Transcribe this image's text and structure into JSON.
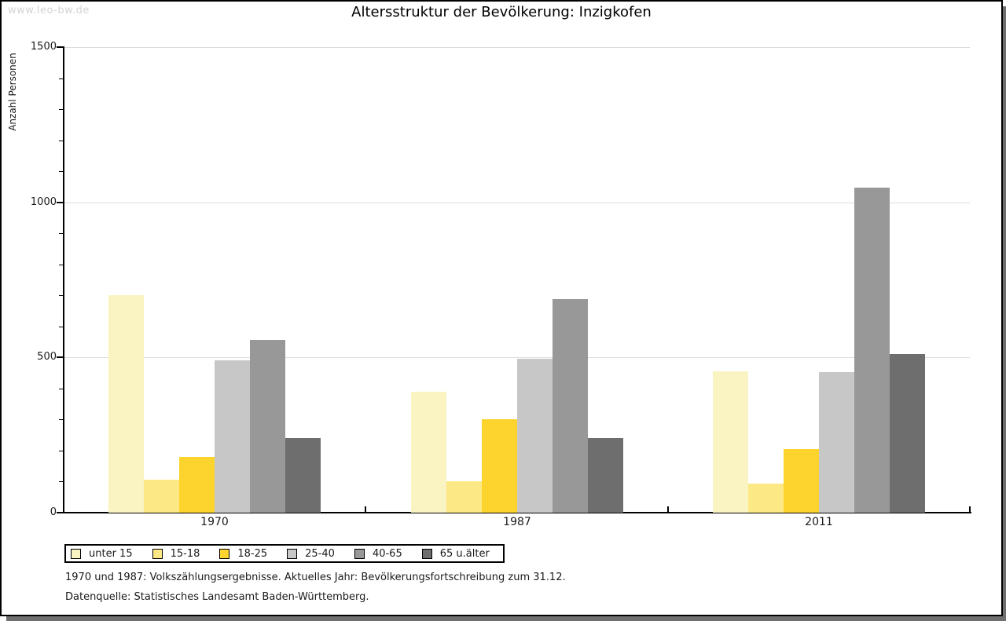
{
  "page": {
    "watermark": "www.leo-bw.de",
    "title": "Altersstruktur der Bevölkerung: Inzigkofen"
  },
  "colors": {
    "axis": "#000000",
    "grid": "#DCDCDC",
    "watermark": "#D3D3D3",
    "page_shadow": "#6F6F6F"
  },
  "chart_data": {
    "type": "bar",
    "title": "Altersstruktur der Bevölkerung: Inzigkofen",
    "xlabel": "",
    "ylabel": "Anzahl Personen",
    "categories": [
      "1970",
      "1987",
      "2011"
    ],
    "series": [
      {
        "name": "unter 15",
        "color": "#FAF3C2",
        "values": [
          700,
          390,
          455
        ]
      },
      {
        "name": "15-18",
        "color": "#FCE985",
        "values": [
          105,
          100,
          93
        ]
      },
      {
        "name": "18-25",
        "color": "#FCD42D",
        "values": [
          180,
          300,
          205
        ]
      },
      {
        "name": "25-40",
        "color": "#C7C7C7",
        "values": [
          490,
          497,
          453
        ]
      },
      {
        "name": "40-65",
        "color": "#989898",
        "values": [
          557,
          687,
          1048
        ]
      },
      {
        "name": "65 u.älter",
        "color": "#6E6E6E",
        "values": [
          240,
          240,
          510
        ]
      }
    ],
    "ylim": [
      0,
      1500
    ],
    "y_major_ticks": [
      0,
      500,
      1000,
      1500
    ],
    "y_minor_step": 100,
    "gridlines": [
      500,
      1000,
      1500
    ],
    "grid_on": true,
    "legend_position": "bottom-left"
  },
  "footnotes": {
    "line1": "1970 und 1987: Volkszählungsergebnisse. Aktuelles Jahr: Bevölkerungsfortschreibung zum 31.12.",
    "line2": "Datenquelle: Statistisches Landesamt Baden-Württemberg."
  }
}
